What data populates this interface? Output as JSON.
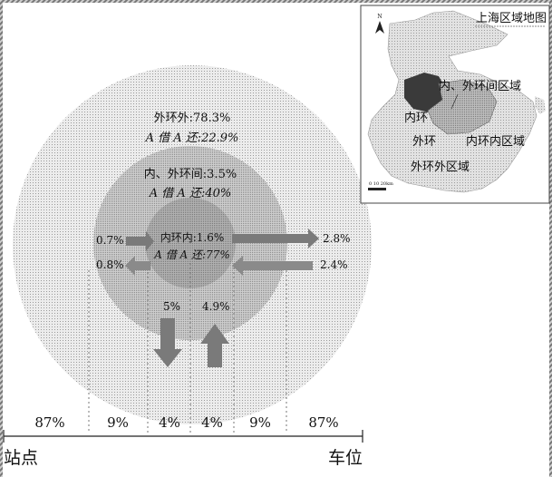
{
  "rings": {
    "outer": {
      "line1": "外环外:78.3%",
      "line2": "A 借 A 还:22.9%"
    },
    "middle": {
      "line1": "内、外环间:3.5%",
      "line2": "A 借 A 还:40%"
    },
    "inner": {
      "line1": "内环内:1.6%",
      "line2": "A 借 A 还:77%"
    }
  },
  "flows": {
    "left_in": "0.7%",
    "left_out": "0.8%",
    "right_out": "2.8%",
    "right_in": "2.4%",
    "down": "5%",
    "up": "4.9%"
  },
  "bottom_values": [
    "87%",
    "9%",
    "4%",
    "4%",
    "9%",
    "87%"
  ],
  "bottom_left_label": "站点",
  "bottom_right_label": "车位",
  "inset_map": {
    "title": "上海区域地图",
    "label_between": "内、外环间区域",
    "label_inner_ring": "内环",
    "label_outer_ring": "外环",
    "label_inner_area": "内环内区域",
    "label_outside": "外环外区域",
    "north_mark": "N",
    "scale_text": "0  10  20km"
  },
  "colors": {
    "frame": "#333333",
    "arrow": "#7a7a7a",
    "map_dark": "#3a3a3a"
  }
}
